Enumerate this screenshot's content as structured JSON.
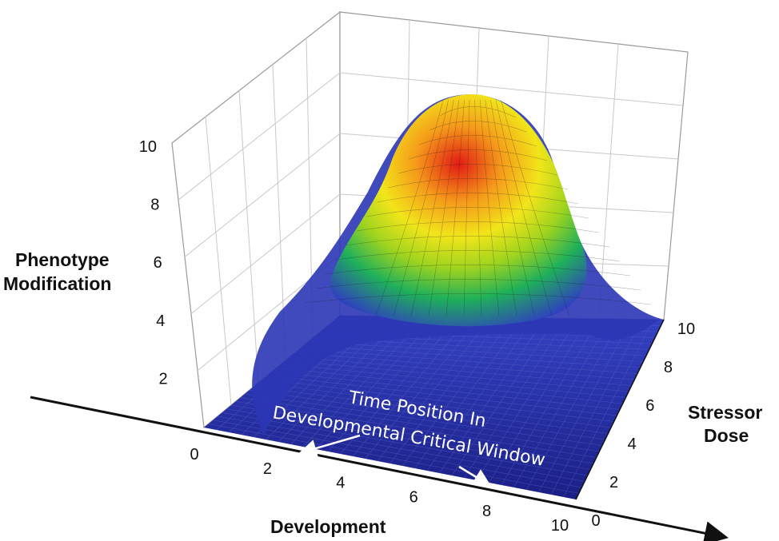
{
  "chart_data": {
    "type": "surface-3d",
    "title": "",
    "axes": {
      "x": {
        "label": "Development",
        "range": [
          0,
          10
        ],
        "ticks": [
          "0",
          "2",
          "4",
          "6",
          "8",
          "10"
        ]
      },
      "y": {
        "label_lines": [
          "Stressor",
          "Dose"
        ],
        "range": [
          0,
          10
        ],
        "ticks": [
          "0",
          "2",
          "4",
          "6",
          "8",
          "10"
        ]
      },
      "z": {
        "label_lines": [
          "Phenotype",
          "Modification"
        ],
        "range": [
          0,
          10
        ],
        "ticks": [
          "2",
          "4",
          "6",
          "8",
          "10"
        ]
      }
    },
    "surface": {
      "shape": "gaussian peak",
      "peak": {
        "development": 5,
        "stressor_dose": 8,
        "phenotype_modification": 10
      },
      "color_map": [
        "#1a2196",
        "#2f3fc0",
        "#1fb05a",
        "#9fd41e",
        "#f2e51a",
        "#f59a1a",
        "#e21b14"
      ]
    },
    "annotation_lines": [
      "Time Position In",
      "Developmental Critical Window"
    ],
    "grid": true
  }
}
